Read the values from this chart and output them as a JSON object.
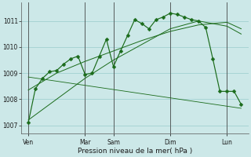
{
  "background_color": "#cce8e8",
  "grid_color": "#99cccc",
  "line_color": "#1a6b1a",
  "xlabel": "Pression niveau de la mer( hPa )",
  "ylim": [
    1006.7,
    1011.7
  ],
  "yticks": [
    1007,
    1008,
    1009,
    1010,
    1011
  ],
  "xlim": [
    0,
    32
  ],
  "day_labels": [
    "Ven",
    "Mar",
    "Sam",
    "Dim",
    "Lun"
  ],
  "day_positions": [
    1,
    9,
    13,
    21,
    29
  ],
  "vline_positions": [
    1,
    9,
    13,
    21,
    29
  ],
  "series_main": {
    "x": [
      1,
      2,
      3,
      4,
      5,
      6,
      7,
      8,
      9,
      10,
      11,
      12,
      13,
      14,
      15,
      16,
      17,
      18,
      19,
      20,
      21,
      22,
      23,
      24,
      25,
      26,
      27,
      28,
      29,
      30,
      31
    ],
    "y": [
      1007.1,
      1008.4,
      1008.8,
      1009.05,
      1009.1,
      1009.35,
      1009.55,
      1009.65,
      1008.95,
      1009.0,
      1009.65,
      1010.3,
      1009.25,
      1009.85,
      1010.45,
      1011.05,
      1010.9,
      1010.7,
      1011.05,
      1011.15,
      1011.3,
      1011.25,
      1011.15,
      1011.05,
      1011.0,
      1010.75,
      1009.55,
      1008.3,
      1008.3,
      1008.3,
      1007.8
    ]
  },
  "series_up1": {
    "x": [
      1,
      5,
      9,
      13,
      17,
      21,
      25,
      29,
      31
    ],
    "y": [
      1007.2,
      1008.0,
      1008.8,
      1009.5,
      1010.1,
      1010.7,
      1011.0,
      1010.8,
      1010.5
    ]
  },
  "series_up2": {
    "x": [
      1,
      5,
      9,
      13,
      17,
      21,
      25,
      29,
      31
    ],
    "y": [
      1008.35,
      1009.0,
      1009.45,
      1009.85,
      1010.25,
      1010.6,
      1010.85,
      1010.95,
      1010.7
    ]
  },
  "series_down": {
    "x": [
      1,
      31
    ],
    "y": [
      1008.85,
      1007.65
    ]
  },
  "marker": "D",
  "marker_size": 2.5
}
